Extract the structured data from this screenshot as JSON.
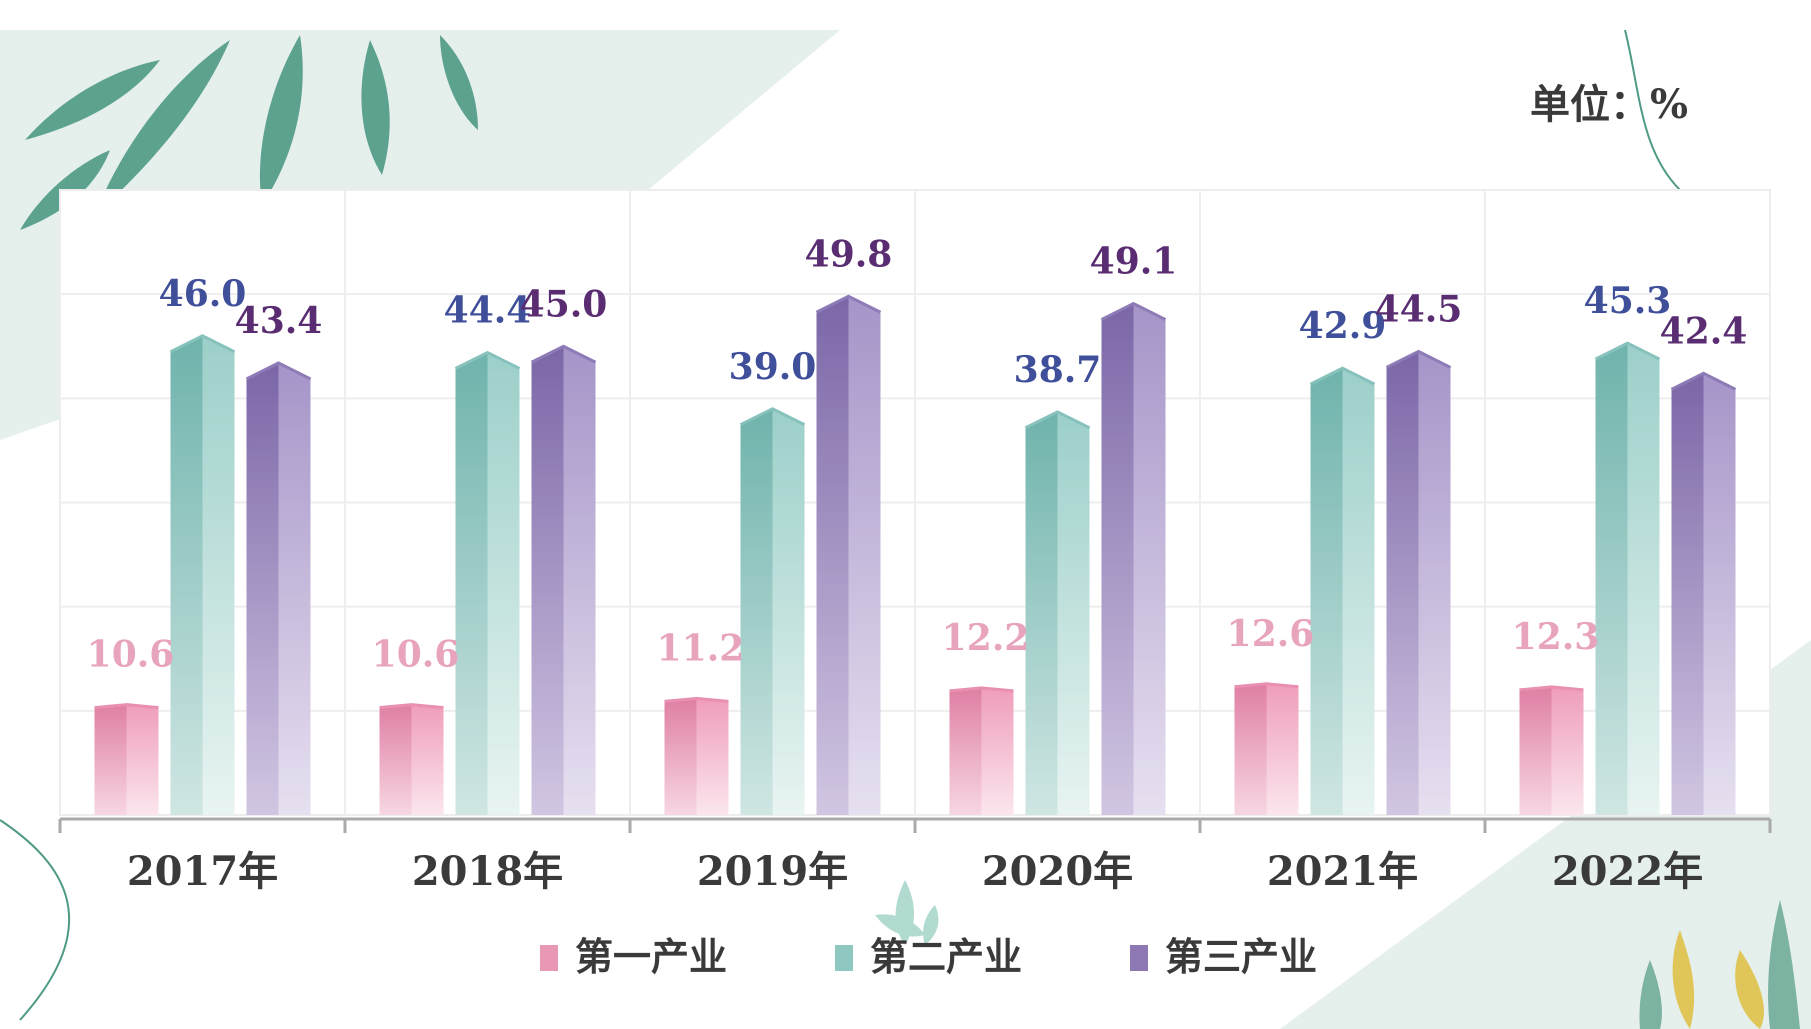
{
  "unit_label": "单位：%",
  "colors": {
    "primary": "#e898b4",
    "secondary": "#7fbdb6",
    "tertiary": "#8e78b4"
  },
  "chart_data": {
    "type": "bar",
    "categories": [
      "2017年",
      "2018年",
      "2019年",
      "2020年",
      "2021年",
      "2022年"
    ],
    "series": [
      {
        "name": "第一产业",
        "values": [
          10.6,
          10.6,
          11.2,
          12.2,
          12.6,
          12.3
        ]
      },
      {
        "name": "第二产业",
        "values": [
          46.0,
          44.4,
          39.0,
          38.7,
          42.9,
          45.3
        ]
      },
      {
        "name": "第三产业",
        "values": [
          43.4,
          45.0,
          49.8,
          49.1,
          44.5,
          42.4
        ]
      }
    ],
    "value_labels": [
      [
        "10.6",
        "10.6",
        "11.2",
        "12.2",
        "12.6",
        "12.3"
      ],
      [
        "46.0",
        "44.4",
        "39.0",
        "38.7",
        "42.9",
        "45.3"
      ],
      [
        "43.4",
        "45.0",
        "49.8",
        "49.1",
        "44.5",
        "42.4"
      ]
    ],
    "ylim": [
      0,
      60
    ],
    "grid": true,
    "legend": "bottom"
  }
}
